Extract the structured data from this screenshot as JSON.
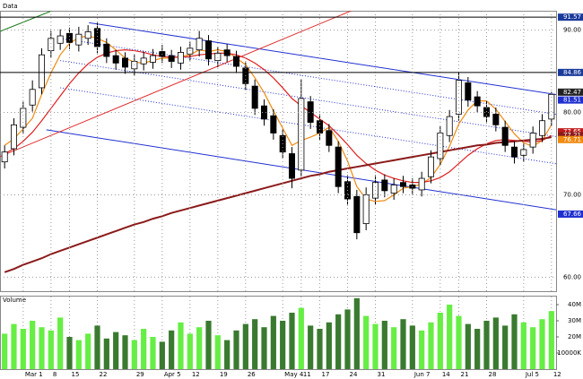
{
  "chart_data": {
    "type": "candlestick",
    "title": "Data",
    "volume_title": "Volume",
    "categories": [
      null,
      null,
      "Mar 1",
      null,
      null,
      "8",
      null,
      "15",
      null,
      null,
      "22",
      null,
      null,
      null,
      "29",
      null,
      null,
      "Apr 5",
      null,
      null,
      "12",
      null,
      null,
      "19",
      null,
      null,
      "26",
      null,
      null,
      null,
      "May 4",
      null,
      "11",
      null,
      "17",
      null,
      null,
      "24",
      null,
      null,
      "31",
      null,
      null,
      null,
      "Jun 7",
      null,
      null,
      "14",
      null,
      "21",
      null,
      null,
      "28",
      null,
      null,
      null,
      "Jul 5",
      null,
      null,
      "12"
    ],
    "open": [
      74.0,
      75.6,
      78.2,
      80.9,
      83.0,
      87.5,
      88.4,
      89.6,
      88.2,
      89.0,
      90.2,
      88.3,
      86.9,
      86.6,
      85.3,
      85.9,
      86.1,
      87.4,
      86.9,
      86.0,
      87.1,
      87.6,
      88.7,
      86.3,
      87.6,
      86.8,
      85.4,
      83.2,
      80.8,
      79.6,
      77.2,
      75.0,
      73.0,
      81.3,
      79.0,
      77.8,
      75.8,
      71.6,
      69.8,
      66.5,
      69.6,
      71.8,
      70.2,
      71.5,
      71.2,
      70.6,
      72.2,
      74.4,
      77.2,
      79.8,
      83.6,
      81.9,
      80.6,
      79.8,
      78.2,
      75.8,
      74.8,
      75.8,
      77.2,
      79.2
    ],
    "high": [
      76.0,
      79.3,
      81.3,
      83.9,
      87.8,
      89.9,
      90.1,
      90.3,
      90.4,
      90.6,
      90.9,
      89.0,
      87.6,
      87.3,
      87.0,
      87.4,
      87.7,
      88.2,
      87.6,
      88.0,
      88.6,
      89.9,
      89.4,
      88.0,
      88.3,
      87.5,
      86.1,
      84.0,
      81.6,
      80.4,
      78.0,
      75.8,
      84.0,
      82.0,
      79.8,
      78.6,
      76.5,
      72.4,
      70.6,
      70.9,
      72.4,
      72.5,
      72.0,
      72.3,
      72.0,
      72.8,
      75.4,
      78.3,
      80.3,
      84.9,
      84.3,
      82.6,
      81.4,
      80.6,
      79.0,
      76.5,
      76.3,
      78.3,
      79.8,
      82.5
    ],
    "low": [
      73.2,
      74.8,
      77.4,
      80.1,
      82.2,
      86.7,
      87.6,
      87.7,
      87.4,
      88.2,
      87.2,
      86.0,
      85.2,
      84.7,
      84.5,
      85.1,
      85.3,
      86.0,
      85.4,
      85.2,
      86.3,
      86.8,
      85.7,
      85.5,
      86.1,
      84.8,
      82.7,
      79.7,
      78.4,
      76.7,
      74.4,
      70.8,
      72.2,
      78.0,
      76.7,
      75.2,
      70.2,
      68.7,
      64.6,
      65.7,
      68.8,
      69.7,
      69.4,
      70.2,
      70.0,
      69.8,
      71.4,
      73.6,
      76.4,
      79.0,
      80.7,
      80.0,
      78.7,
      77.7,
      75.2,
      73.8,
      74.0,
      75.0,
      76.4,
      78.4
    ],
    "close": [
      75.2,
      78.5,
      80.5,
      82.8,
      87.0,
      89.0,
      89.3,
      88.5,
      89.5,
      89.8,
      88.0,
      86.8,
      86.0,
      85.5,
      86.2,
      86.6,
      86.9,
      86.8,
      86.2,
      87.3,
      87.8,
      89.0,
      86.5,
      87.2,
      86.9,
      85.6,
      83.5,
      80.5,
      79.2,
      77.5,
      75.2,
      72.0,
      81.7,
      78.8,
      77.5,
      76.0,
      71.0,
      69.5,
      65.4,
      70.0,
      71.5,
      70.5,
      71.2,
      71.0,
      70.8,
      72.0,
      74.6,
      77.5,
      79.5,
      83.9,
      81.5,
      80.8,
      79.5,
      78.5,
      76.0,
      74.6,
      75.5,
      77.5,
      79.0,
      82.2
    ],
    "up_color": "#ffffff",
    "down_color": "#000000",
    "moving_averages": [
      {
        "color": "#f08a10",
        "values": [
          76.0,
          76.8,
          78.0,
          79.3,
          82.2,
          84.8,
          87.0,
          88.4,
          89.1,
          89.3,
          89.0,
          88.5,
          87.6,
          86.6,
          86.1,
          86.0,
          86.3,
          86.6,
          86.6,
          86.8,
          87.0,
          87.6,
          87.4,
          87.6,
          87.4,
          86.6,
          85.8,
          84.2,
          82.4,
          80.2,
          78.1,
          76.0,
          76.6,
          77.0,
          77.5,
          78.2,
          76.5,
          74.1,
          71.0,
          69.5,
          69.2,
          69.3,
          70.0,
          70.8,
          71.0,
          71.3,
          72.1,
          73.7,
          75.9,
          78.6,
          80.3,
          81.4,
          81.4,
          80.4,
          78.9,
          77.4,
          76.3,
          75.9,
          76.6,
          78.5
        ]
      },
      {
        "color": "#e02020",
        "values": [
          75.0,
          75.6,
          76.5,
          77.6,
          79.0,
          80.5,
          82.0,
          83.5,
          84.8,
          85.9,
          86.7,
          87.2,
          87.5,
          87.6,
          87.5,
          87.3,
          87.0,
          86.8,
          86.7,
          86.7,
          86.8,
          87.0,
          87.1,
          87.2,
          87.2,
          87.0,
          86.6,
          86.0,
          85.2,
          84.2,
          83.0,
          81.7,
          80.8,
          80.0,
          79.2,
          78.4,
          77.3,
          76.1,
          74.8,
          73.8,
          73.0,
          72.4,
          72.0,
          71.7,
          71.5,
          71.5,
          71.7,
          72.1,
          72.8,
          73.8,
          74.8,
          75.6,
          76.2,
          76.6,
          76.7,
          76.6,
          76.5,
          76.4,
          76.6,
          77.2
        ]
      },
      {
        "color": "#8b1a1a",
        "values": [
          60.6,
          61.0,
          61.5,
          61.9,
          62.3,
          62.8,
          63.2,
          63.6,
          64.0,
          64.4,
          64.8,
          65.2,
          65.6,
          66.0,
          66.4,
          66.7,
          67.1,
          67.4,
          67.8,
          68.1,
          68.4,
          68.7,
          69.0,
          69.3,
          69.6,
          69.9,
          70.2,
          70.5,
          70.8,
          71.1,
          71.4,
          71.7,
          72.0,
          72.3,
          72.5,
          72.8,
          73.0,
          73.2,
          73.4,
          73.6,
          73.8,
          74.0,
          74.2,
          74.4,
          74.6,
          74.8,
          75.0,
          75.2,
          75.4,
          75.6,
          75.8,
          76.0,
          76.1,
          76.3,
          76.4,
          76.5,
          76.6,
          76.7,
          76.8,
          77.0
        ]
      }
    ],
    "trendlines": [
      {
        "color": "#2030d0",
        "dashed": false,
        "points": [
          [
            9.1,
            90.9
          ],
          [
            61.1,
            81.9
          ]
        ]
      },
      {
        "color": "#2030d0",
        "dashed": false,
        "points": [
          [
            4.5,
            77.9
          ],
          [
            61.1,
            67.9
          ]
        ]
      },
      {
        "color": "#2030d0",
        "dashed": true,
        "points": [
          [
            6,
            89.0
          ],
          [
            61.1,
            79.5
          ]
        ]
      },
      {
        "color": "#2030d0",
        "dashed": true,
        "points": [
          [
            6,
            86.3
          ],
          [
            61.1,
            76.8
          ]
        ]
      },
      {
        "color": "#2030d0",
        "dashed": true,
        "points": [
          [
            6,
            83.0
          ],
          [
            61.1,
            73.5
          ]
        ]
      },
      {
        "color": "#e03030",
        "dashed": false,
        "points": [
          [
            -0.6,
            74.6
          ],
          [
            37.4,
            92.35
          ]
        ]
      },
      {
        "color": "#1a7a1a",
        "dashed": false,
        "points": [
          [
            -0.6,
            89.8
          ],
          [
            5.1,
            92.35
          ]
        ]
      }
    ],
    "price_labels": [
      {
        "value": 91.57,
        "label": "91.57",
        "color": "#1a3a9a",
        "line": true
      },
      {
        "value": 84.86,
        "label": "84.86",
        "color": "#1a3a9a",
        "line": true
      },
      {
        "value": 82.47,
        "label": "82.47",
        "color": "#222222",
        "line": false
      },
      {
        "value": 81.51,
        "label": "81.51",
        "color": "#2030d0",
        "line": false
      },
      {
        "value": 77.65,
        "label": "77.65",
        "color": "#c01818",
        "line": false
      },
      {
        "value": 77.21,
        "label": "77.21",
        "color": "#8b1a1a",
        "line": false
      },
      {
        "value": 76.71,
        "label": "76.71",
        "color": "#f08a10",
        "line": false
      },
      {
        "value": 67.66,
        "label": "67.66",
        "color": "#2030d0",
        "line": false
      }
    ],
    "ylim": [
      58.3,
      92.35
    ],
    "yticks": [
      {
        "value": 90,
        "label": "90.00"
      },
      {
        "value": 80,
        "label": "80.00"
      },
      {
        "value": 70,
        "label": "70.00"
      },
      {
        "value": 60,
        "label": "60.00"
      }
    ],
    "volume": [
      22,
      28,
      25,
      30,
      26,
      24,
      32,
      20,
      18,
      22,
      27,
      19,
      23,
      21,
      18,
      25,
      20,
      17,
      24,
      29,
      22,
      26,
      30,
      21,
      18,
      24,
      28,
      31,
      26,
      33,
      30,
      35,
      38,
      27,
      25,
      29,
      34,
      37,
      44,
      33,
      28,
      30,
      26,
      31,
      27,
      24,
      29,
      35,
      40,
      33,
      28,
      25,
      30,
      32,
      27,
      34,
      29,
      26,
      31,
      36
    ],
    "volume_up_color": "#66ee44",
    "volume_down_color": "#3a7a30",
    "vlim": [
      0,
      45
    ],
    "vticks": [
      {
        "value": 40,
        "label": "40M"
      },
      {
        "value": 30,
        "label": "30M"
      },
      {
        "value": 20,
        "label": "20M"
      },
      {
        "value": 10,
        "label": "10000K"
      }
    ],
    "grid": true
  }
}
